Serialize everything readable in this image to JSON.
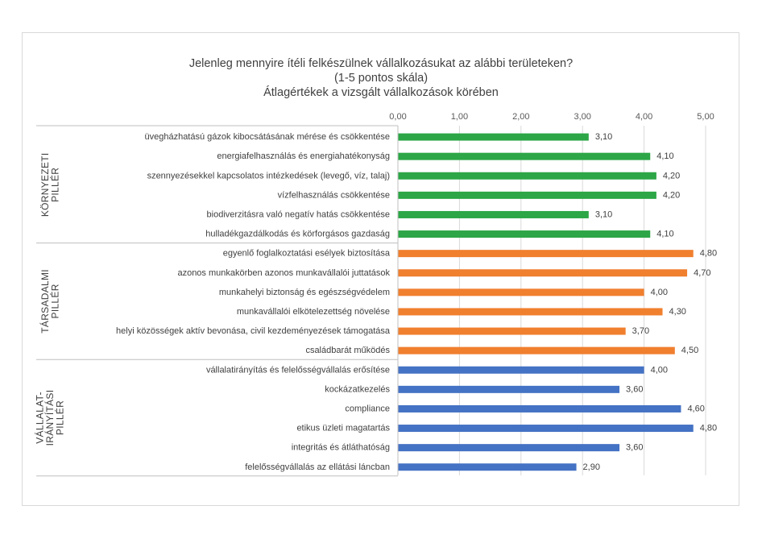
{
  "chart_data": {
    "type": "bar",
    "orientation": "horizontal",
    "title": [
      "Jelenleg mennyire ítéli felkészülnek vállalkozásukat az alábbi területeken?",
      "(1-5 pontos skála)",
      "Átlagértékek a vizsgált vállalkozások körében"
    ],
    "xlim": [
      0,
      5
    ],
    "xticks": [
      "0,00",
      "1,00",
      "2,00",
      "3,00",
      "4,00",
      "5,00"
    ],
    "axis_position": "top",
    "grid": true,
    "colors": {
      "environmental": "#2ca646",
      "social": "#f07f2e",
      "governance": "#4472c4"
    },
    "groups": [
      {
        "key": "environmental",
        "label_lines": [
          "KÖRNYEZETI",
          "PILLÉR"
        ],
        "categories": [
          "üvegházhatású gázok kibocsátásának mérése és csökkentése",
          "energiafelhasználás és energiahatékonyság",
          "szennyezésekkel kapcsolatos intézkedések (levegő, víz, talaj)",
          "vízfelhasználás csökkentése",
          "biodiverzitásra való negatív hatás csökkentése",
          "hulladékgazdálkodás és körforgásos gazdaság"
        ],
        "values": [
          3.1,
          4.1,
          4.2,
          4.2,
          3.1,
          4.1
        ],
        "labels": [
          "3,10",
          "4,10",
          "4,20",
          "4,20",
          "3,10",
          "4,10"
        ]
      },
      {
        "key": "social",
        "label_lines": [
          "TÁRSADALMI",
          "PILLÉR"
        ],
        "categories": [
          "egyenlő foglalkoztatási esélyek biztosítása",
          "azonos munkakörben azonos munkavállalói juttatások",
          "munkahelyi biztonság és egészségvédelem",
          "munkavállalói elkötelezettség növelése",
          "helyi közösségek aktív bevonása, civil kezdeményezések támogatása",
          "családbarát működés"
        ],
        "values": [
          4.8,
          4.7,
          4.0,
          4.3,
          3.7,
          4.5
        ],
        "labels": [
          "4,80",
          "4,70",
          "4,00",
          "4,30",
          "3,70",
          "4,50"
        ]
      },
      {
        "key": "governance",
        "label_lines": [
          "VÁLLALAT-",
          "IRÁNYÍTÁSI",
          "PILLÉR"
        ],
        "categories": [
          "vállalatirányítás és felelősségvállalás erősítése",
          "kockázatkezelés",
          "compliance",
          "etikus üzleti magatartás",
          "integritás és átláthatóság",
          "felelősségvállalás az ellátási láncban"
        ],
        "values": [
          4.0,
          3.6,
          4.6,
          4.8,
          3.6,
          2.9
        ],
        "labels": [
          "4,00",
          "3,60",
          "4,60",
          "4,80",
          "3,60",
          "2,90"
        ]
      }
    ]
  }
}
